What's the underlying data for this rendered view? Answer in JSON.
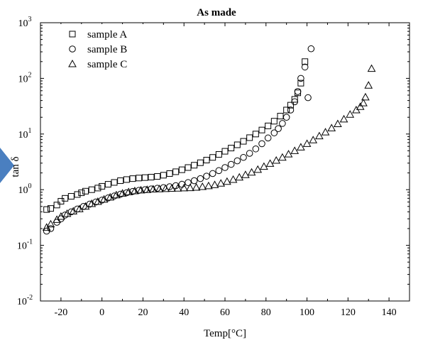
{
  "chart_data": {
    "type": "scatter",
    "title": "As made",
    "xlabel": "Temp[°C]",
    "ylabel": "tan δ",
    "xlim": [
      -30,
      150
    ],
    "ylim": [
      0.01,
      1000
    ],
    "yscale": "log",
    "x_ticks": [
      -20,
      0,
      20,
      40,
      60,
      80,
      100,
      120,
      140
    ],
    "x_tick_labels": [
      "-20",
      "0",
      "20",
      "40",
      "60",
      "80",
      "100",
      "120",
      "140"
    ],
    "y_ticks": [
      {
        "value": 0.01,
        "base": "10",
        "exp": "-2"
      },
      {
        "value": 0.1,
        "base": "10",
        "exp": "-1"
      },
      {
        "value": 1,
        "base": "10",
        "exp": "0"
      },
      {
        "value": 10,
        "base": "10",
        "exp": "1"
      },
      {
        "value": 100,
        "base": "10",
        "exp": "2"
      },
      {
        "value": 1000,
        "base": "10",
        "exp": "3"
      }
    ],
    "legend_position": "top-left",
    "grid": false,
    "series": [
      {
        "name": "sample A",
        "marker": "square",
        "points": [
          [
            -27,
            0.44
          ],
          [
            -25,
            0.46
          ],
          [
            -22,
            0.53
          ],
          [
            -20,
            0.62
          ],
          [
            -18,
            0.7
          ],
          [
            -15,
            0.76
          ],
          [
            -12,
            0.82
          ],
          [
            -10,
            0.88
          ],
          [
            -8,
            0.94
          ],
          [
            -5,
            1.0
          ],
          [
            -2,
            1.07
          ],
          [
            0,
            1.15
          ],
          [
            3,
            1.25
          ],
          [
            6,
            1.35
          ],
          [
            9,
            1.45
          ],
          [
            12,
            1.52
          ],
          [
            15,
            1.58
          ],
          [
            18,
            1.62
          ],
          [
            21,
            1.65
          ],
          [
            24,
            1.68
          ],
          [
            27,
            1.73
          ],
          [
            30,
            1.82
          ],
          [
            33,
            1.95
          ],
          [
            36,
            2.1
          ],
          [
            39,
            2.28
          ],
          [
            42,
            2.5
          ],
          [
            45,
            2.75
          ],
          [
            48,
            3.05
          ],
          [
            51,
            3.4
          ],
          [
            54,
            3.8
          ],
          [
            57,
            4.3
          ],
          [
            60,
            4.9
          ],
          [
            63,
            5.6
          ],
          [
            66,
            6.4
          ],
          [
            69,
            7.4
          ],
          [
            72,
            8.6
          ],
          [
            75,
            10
          ],
          [
            78,
            11.8
          ],
          [
            81,
            14
          ],
          [
            84,
            17
          ],
          [
            87,
            21
          ],
          [
            90,
            27
          ],
          [
            92,
            33
          ],
          [
            94,
            42
          ],
          [
            95.5,
            55
          ],
          [
            97,
            82
          ],
          [
            99,
            200
          ]
        ]
      },
      {
        "name": "sample B",
        "marker": "circle",
        "points": [
          [
            -27,
            0.18
          ],
          [
            -25,
            0.2
          ],
          [
            -22,
            0.26
          ],
          [
            -20,
            0.3
          ],
          [
            -18,
            0.35
          ],
          [
            -15,
            0.4
          ],
          [
            -12,
            0.45
          ],
          [
            -9,
            0.5
          ],
          [
            -6,
            0.55
          ],
          [
            -3,
            0.6
          ],
          [
            0,
            0.65
          ],
          [
            3,
            0.71
          ],
          [
            6,
            0.77
          ],
          [
            9,
            0.83
          ],
          [
            12,
            0.88
          ],
          [
            15,
            0.93
          ],
          [
            18,
            0.97
          ],
          [
            21,
            1.0
          ],
          [
            24,
            1.03
          ],
          [
            27,
            1.06
          ],
          [
            30,
            1.09
          ],
          [
            33,
            1.13
          ],
          [
            36,
            1.18
          ],
          [
            39,
            1.25
          ],
          [
            42,
            1.34
          ],
          [
            45,
            1.45
          ],
          [
            48,
            1.58
          ],
          [
            51,
            1.75
          ],
          [
            54,
            1.95
          ],
          [
            57,
            2.2
          ],
          [
            60,
            2.5
          ],
          [
            63,
            2.85
          ],
          [
            66,
            3.3
          ],
          [
            69,
            3.8
          ],
          [
            72,
            4.5
          ],
          [
            75,
            5.4
          ],
          [
            78,
            6.7
          ],
          [
            81,
            8.5
          ],
          [
            84,
            10.5
          ],
          [
            86,
            12.5
          ],
          [
            88,
            15.5
          ],
          [
            90,
            20
          ],
          [
            92,
            27
          ],
          [
            94,
            38
          ],
          [
            95.5,
            58
          ],
          [
            97,
            100
          ],
          [
            99,
            160
          ],
          [
            100.5,
            45
          ],
          [
            102,
            340
          ]
        ]
      },
      {
        "name": "sample C",
        "marker": "triangle",
        "points": [
          [
            -27,
            0.21
          ],
          [
            -25,
            0.24
          ],
          [
            -22,
            0.29
          ],
          [
            -20,
            0.33
          ],
          [
            -17,
            0.37
          ],
          [
            -14,
            0.41
          ],
          [
            -11,
            0.45
          ],
          [
            -8,
            0.5
          ],
          [
            -5,
            0.56
          ],
          [
            -2,
            0.61
          ],
          [
            1,
            0.67
          ],
          [
            4,
            0.73
          ],
          [
            7,
            0.8
          ],
          [
            10,
            0.86
          ],
          [
            13,
            0.91
          ],
          [
            16,
            0.95
          ],
          [
            19,
            0.98
          ],
          [
            22,
            1.0
          ],
          [
            25,
            1.02
          ],
          [
            28,
            1.03
          ],
          [
            31,
            1.04
          ],
          [
            34,
            1.05
          ],
          [
            37,
            1.06
          ],
          [
            40,
            1.07
          ],
          [
            43,
            1.08
          ],
          [
            46,
            1.1
          ],
          [
            49,
            1.13
          ],
          [
            52,
            1.17
          ],
          [
            55,
            1.22
          ],
          [
            58,
            1.3
          ],
          [
            61,
            1.4
          ],
          [
            64,
            1.52
          ],
          [
            67,
            1.67
          ],
          [
            70,
            1.85
          ],
          [
            73,
            2.05
          ],
          [
            76,
            2.3
          ],
          [
            79,
            2.6
          ],
          [
            82,
            2.95
          ],
          [
            85,
            3.35
          ],
          [
            88,
            3.8
          ],
          [
            91,
            4.35
          ],
          [
            94,
            5.0
          ],
          [
            97,
            5.8
          ],
          [
            100,
            6.7
          ],
          [
            103,
            7.8
          ],
          [
            106,
            9.2
          ],
          [
            109,
            10.8
          ],
          [
            112,
            12.8
          ],
          [
            115,
            15.2
          ],
          [
            118,
            18.5
          ],
          [
            121,
            22.5
          ],
          [
            124,
            27
          ],
          [
            126,
            31
          ],
          [
            127.5,
            36
          ],
          [
            128.5,
            46
          ],
          [
            130,
            75
          ],
          [
            131.5,
            150
          ]
        ]
      }
    ]
  }
}
